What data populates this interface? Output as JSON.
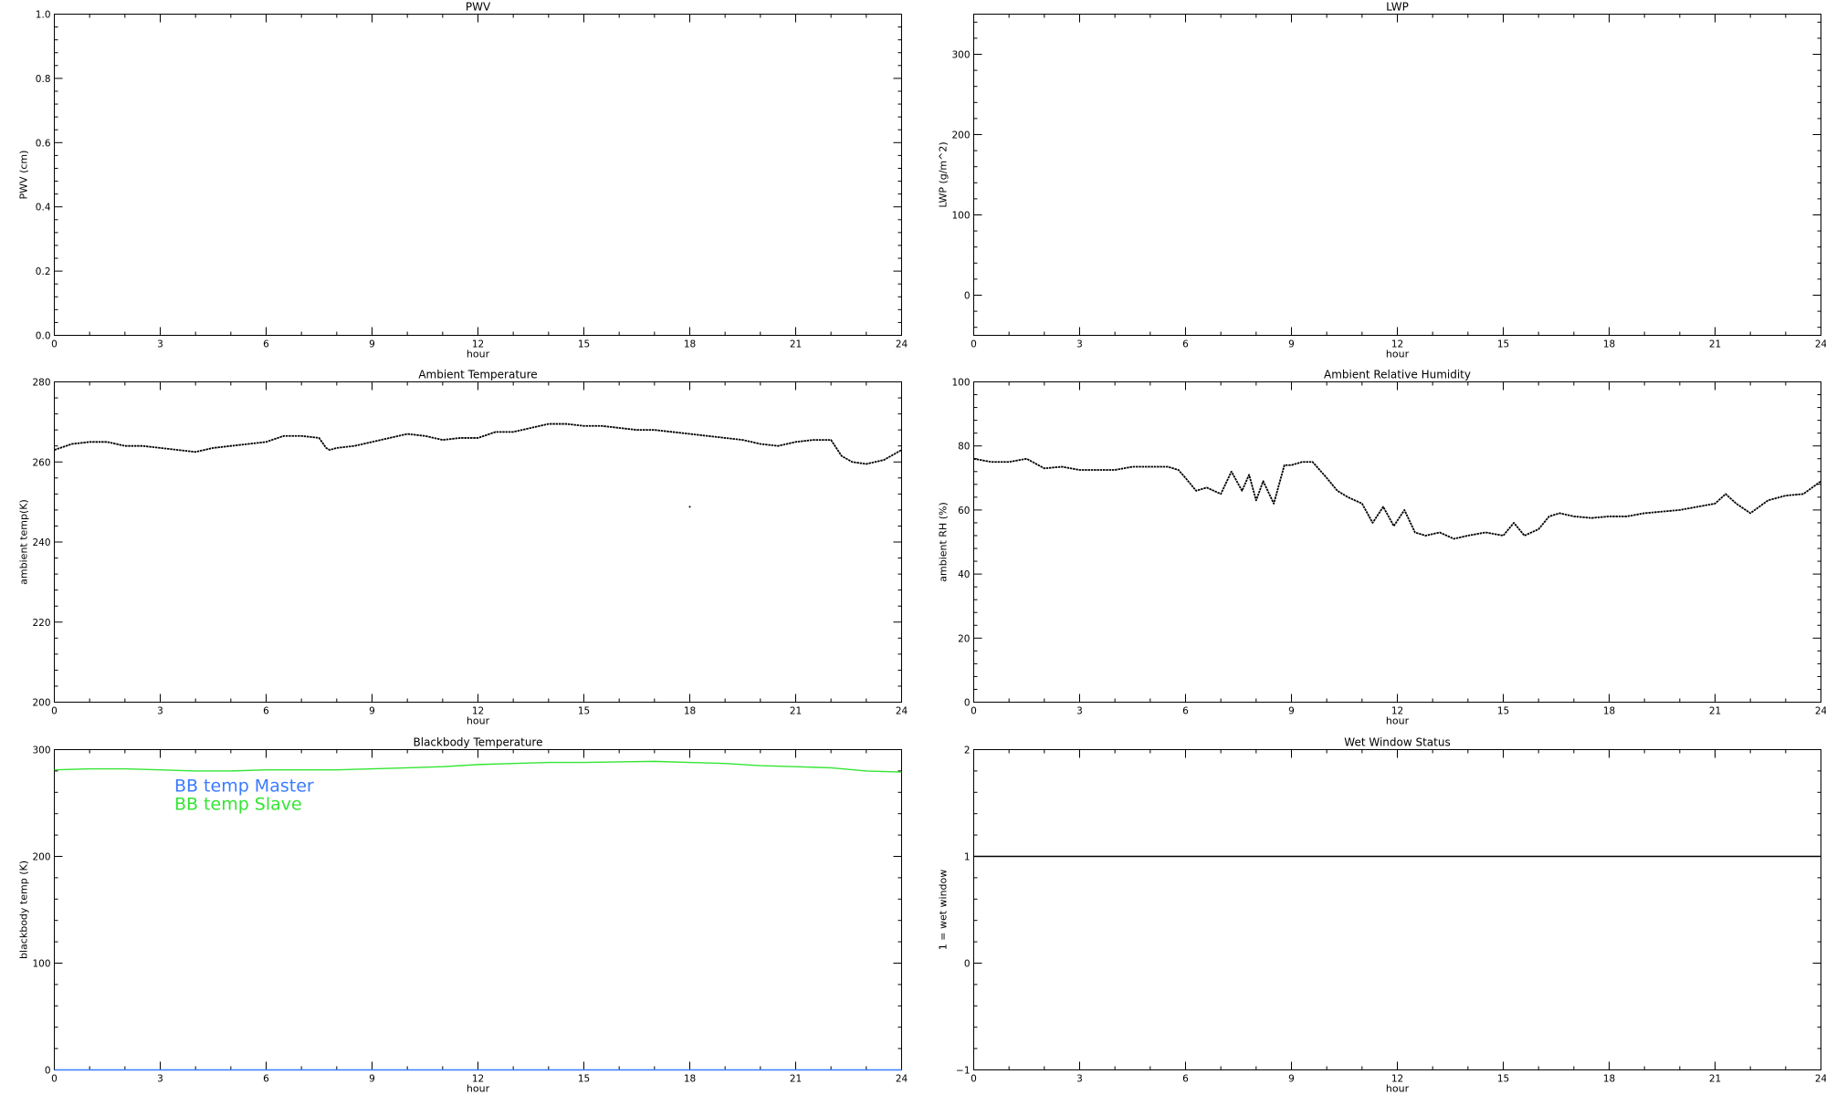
{
  "chart_data": [
    {
      "type": "line",
      "title": "PWV",
      "xlabel": "hour",
      "ylabel": "PWV (cm)",
      "xlim": [
        0,
        24
      ],
      "ylim": [
        0.0,
        1.0
      ],
      "xticks": [
        0,
        3,
        6,
        9,
        12,
        15,
        18,
        21,
        24
      ],
      "xtick_labels": [
        "0",
        "3",
        "6",
        "9",
        "12",
        "15",
        "18",
        "21",
        "24"
      ],
      "yticks": [
        0.0,
        0.2,
        0.4,
        0.6,
        0.8,
        1.0
      ],
      "ytick_labels": [
        "0.0",
        "0.2",
        "0.4",
        "0.6",
        "0.8",
        "1.0"
      ],
      "series": []
    },
    {
      "type": "line",
      "title": "LWP",
      "xlabel": "hour",
      "ylabel": "LWP (g/m^2)",
      "xlim": [
        0,
        24
      ],
      "ylim": [
        -50,
        350
      ],
      "xticks": [
        0,
        3,
        6,
        9,
        12,
        15,
        18,
        21,
        24
      ],
      "xtick_labels": [
        "0",
        "3",
        "6",
        "9",
        "12",
        "15",
        "18",
        "21",
        "24"
      ],
      "yticks": [
        0,
        100,
        200,
        300
      ],
      "ytick_labels": [
        "0",
        "100",
        "200",
        "300"
      ],
      "series": []
    },
    {
      "type": "scatter",
      "title": "Ambient Temperature",
      "xlabel": "hour",
      "ylabel": "ambient temp(K)",
      "xlim": [
        0,
        24
      ],
      "ylim": [
        200,
        280
      ],
      "xticks": [
        0,
        3,
        6,
        9,
        12,
        15,
        18,
        21,
        24
      ],
      "xtick_labels": [
        "0",
        "3",
        "6",
        "9",
        "12",
        "15",
        "18",
        "21",
        "24"
      ],
      "yticks": [
        200,
        220,
        240,
        260,
        280
      ],
      "ytick_labels": [
        "200",
        "220",
        "240",
        "260",
        "280"
      ],
      "series": [
        {
          "color": "#000000",
          "x": [
            0,
            0.5,
            1,
            1.5,
            2,
            2.5,
            3,
            3.5,
            4,
            4.5,
            5,
            5.5,
            6,
            6.5,
            7,
            7.5,
            7.7,
            7.8,
            8,
            8.5,
            9,
            9.5,
            10,
            10.5,
            11,
            11.5,
            12,
            12.5,
            13,
            13.5,
            14,
            14.5,
            15,
            15.5,
            16,
            16.5,
            17,
            17.5,
            18,
            18.5,
            19,
            19.5,
            20,
            20.5,
            21,
            21.5,
            22,
            22.3,
            22.6,
            23,
            23.5,
            24
          ],
          "y": [
            263,
            264.5,
            265,
            265,
            264,
            264,
            263.5,
            263,
            262.5,
            263.5,
            264,
            264.5,
            265,
            266.5,
            266.5,
            266,
            263.5,
            263,
            263.5,
            264,
            265,
            266,
            267,
            266.5,
            265.5,
            266,
            266,
            267.5,
            267.5,
            268.5,
            269.5,
            269.5,
            269,
            269,
            268.5,
            268,
            268,
            267.5,
            267,
            266.5,
            266,
            265.5,
            264.5,
            264,
            265,
            265.5,
            265.5,
            261.5,
            260,
            259.5,
            260.5,
            263
          ]
        },
        {
          "color": "#000000",
          "x": [
            18.0
          ],
          "y": [
            248.8
          ]
        }
      ]
    },
    {
      "type": "scatter",
      "title": "Ambient Relative Humidity",
      "xlabel": "hour",
      "ylabel": "ambient RH (%)",
      "xlim": [
        0,
        24
      ],
      "ylim": [
        0,
        100
      ],
      "xticks": [
        0,
        3,
        6,
        9,
        12,
        15,
        18,
        21,
        24
      ],
      "xtick_labels": [
        "0",
        "3",
        "6",
        "9",
        "12",
        "15",
        "18",
        "21",
        "24"
      ],
      "yticks": [
        0,
        20,
        40,
        60,
        80,
        100
      ],
      "ytick_labels": [
        "0",
        "20",
        "40",
        "60",
        "80",
        "100"
      ],
      "series": [
        {
          "color": "#000000",
          "x": [
            0,
            0.5,
            1,
            1.5,
            2,
            2.5,
            3,
            3.5,
            4,
            4.5,
            5,
            5.5,
            5.8,
            6,
            6.3,
            6.6,
            7,
            7.3,
            7.6,
            7.8,
            8,
            8.2,
            8.5,
            8.8,
            9,
            9.3,
            9.6,
            10,
            10.3,
            10.6,
            11,
            11.3,
            11.6,
            11.9,
            12.2,
            12.5,
            12.8,
            13.2,
            13.6,
            14,
            14.5,
            15,
            15.3,
            15.6,
            16,
            16.3,
            16.6,
            17,
            17.5,
            18,
            18.5,
            19,
            19.5,
            20,
            20.5,
            21,
            21.3,
            21.6,
            22,
            22.5,
            23,
            23.5,
            24
          ],
          "y": [
            76,
            75,
            75,
            76,
            73,
            73.5,
            72.5,
            72.5,
            72.5,
            73.5,
            73.5,
            73.5,
            72.5,
            70,
            66,
            67,
            65,
            72,
            66,
            71,
            63,
            69,
            62,
            74,
            74,
            75,
            75,
            70,
            66,
            64,
            62,
            56,
            61,
            55,
            60,
            53,
            52,
            53,
            51,
            52,
            53,
            52,
            56,
            52,
            54,
            58,
            59,
            58,
            57.5,
            58,
            58,
            59,
            59.5,
            60,
            61,
            62,
            65,
            62,
            59,
            63,
            64.5,
            65,
            69
          ]
        }
      ]
    },
    {
      "type": "line",
      "title": "Blackbody Temperature",
      "xlabel": "hour",
      "ylabel": "blackbody temp (K)",
      "xlim": [
        0,
        24
      ],
      "ylim": [
        0,
        300
      ],
      "xticks": [
        0,
        3,
        6,
        9,
        12,
        15,
        18,
        21,
        24
      ],
      "xtick_labels": [
        "0",
        "3",
        "6",
        "9",
        "12",
        "15",
        "18",
        "21",
        "24"
      ],
      "yticks": [
        0,
        100,
        200,
        300
      ],
      "ytick_labels": [
        "0",
        "100",
        "200",
        "300"
      ],
      "legend": "top-left",
      "series": [
        {
          "name": "BB temp Master",
          "color": "#3a7bff",
          "x": [
            0,
            3,
            6,
            9,
            12,
            15,
            18,
            21,
            24
          ],
          "y": [
            0,
            0,
            0,
            0,
            0,
            0,
            0,
            0,
            0
          ]
        },
        {
          "name": "BB temp Slave",
          "color": "#33e533",
          "x": [
            0,
            1,
            2,
            3,
            4,
            5,
            6,
            7,
            8,
            9,
            10,
            11,
            12,
            13,
            14,
            15,
            16,
            17,
            18,
            19,
            20,
            21,
            22,
            23,
            24
          ],
          "y": [
            281,
            282,
            282,
            281,
            280,
            280,
            281,
            281,
            281,
            282,
            283,
            284,
            286,
            287,
            288,
            288,
            288.5,
            289,
            288,
            287,
            285,
            284,
            283,
            280,
            279
          ]
        }
      ]
    },
    {
      "type": "line",
      "title": "Wet Window Status",
      "xlabel": "hour",
      "ylabel": "1 = wet window",
      "xlim": [
        0,
        24
      ],
      "ylim": [
        -1,
        2
      ],
      "xticks": [
        0,
        3,
        6,
        9,
        12,
        15,
        18,
        21,
        24
      ],
      "xtick_labels": [
        "0",
        "3",
        "6",
        "9",
        "12",
        "15",
        "18",
        "21",
        "24"
      ],
      "yticks": [
        -1,
        0,
        1,
        2
      ],
      "ytick_labels": [
        "−1",
        "0",
        "1",
        "2"
      ],
      "series": [
        {
          "color": "#000000",
          "x": [
            0,
            24
          ],
          "y": [
            1,
            1
          ]
        }
      ]
    }
  ]
}
